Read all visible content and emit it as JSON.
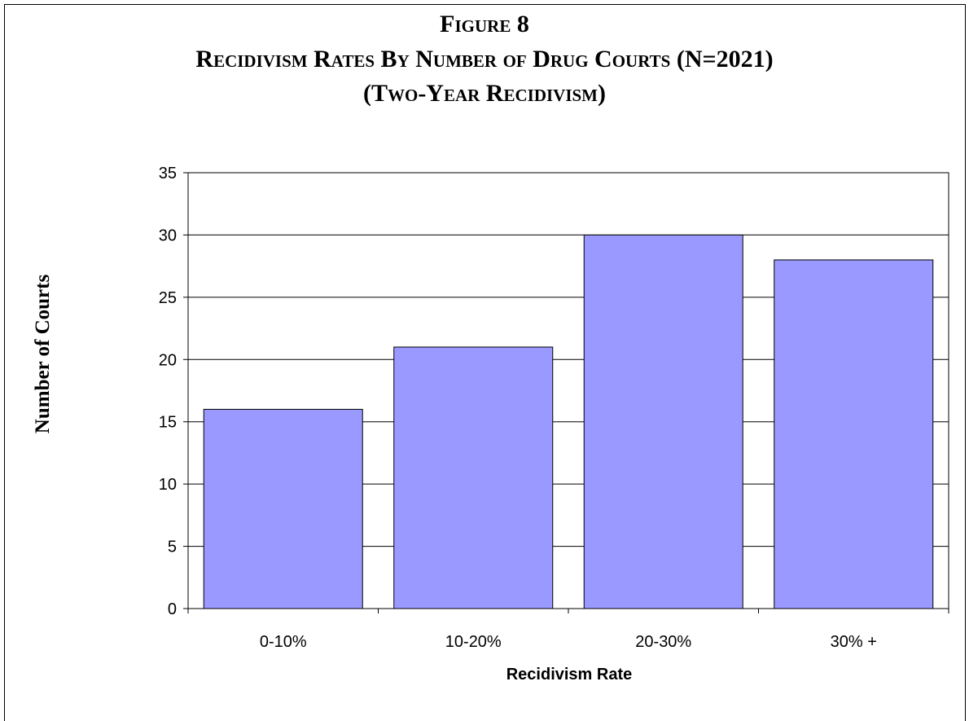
{
  "chart_data": {
    "type": "bar",
    "title": [
      "Figure 8",
      "Recidivism Rates By Number of Drug Courts (N=2021)",
      "(Two-Year Recidivism)"
    ],
    "xlabel": "Recidivism Rate",
    "ylabel": "Number of Courts",
    "categories": [
      "0-10%",
      "10-20%",
      "20-30%",
      "30% +"
    ],
    "values": [
      16,
      21,
      30,
      28
    ],
    "ylim": [
      0,
      35
    ],
    "yticks": [
      "0",
      "5",
      "10",
      "15",
      "20",
      "25",
      "30",
      "35"
    ],
    "grid": true,
    "legend": "none",
    "bar_color": "#9999ff",
    "bar_edge_color": "#000000",
    "grid_color": "#000000"
  }
}
